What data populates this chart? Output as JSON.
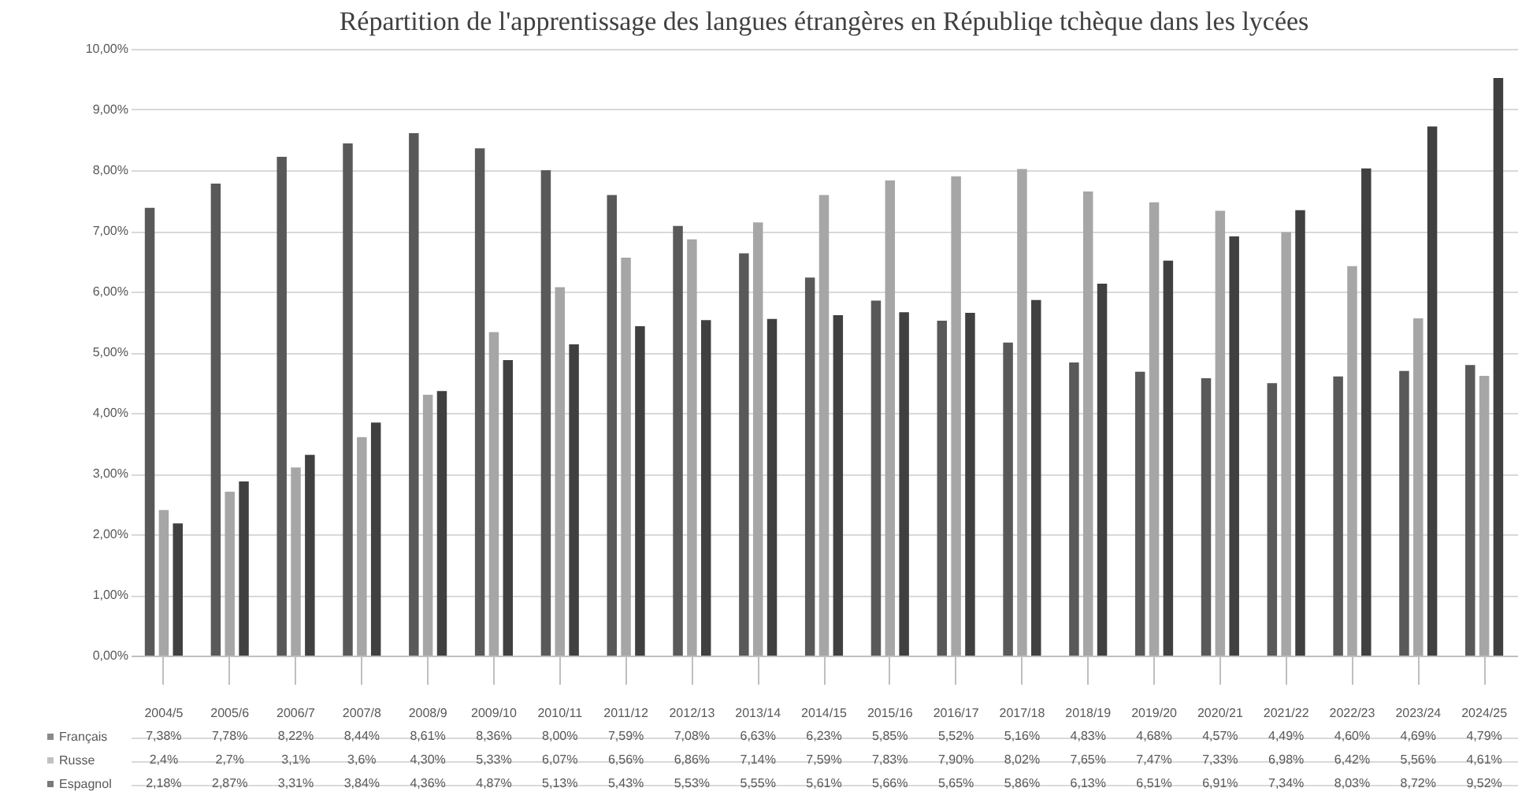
{
  "chart_data": {
    "type": "bar",
    "title": "Répartition de l'apprentissage des langues étrangères en Républiqe tchèque dans les lycées",
    "categories": [
      "2004/5",
      "2005/6",
      "2006/7",
      "2007/8",
      "2008/9",
      "2009/10",
      "2010/11",
      "2011/12",
      "2012/13",
      "2013/14",
      "2014/15",
      "2015/16",
      "2016/17",
      "2017/18",
      "2018/19",
      "2019/20",
      "2020/21",
      "2021/22",
      "2022/23",
      "2023/24",
      "2024/25"
    ],
    "series": [
      {
        "name": "Français",
        "color": "#595959",
        "values": [
          7.38,
          7.78,
          8.22,
          8.44,
          8.61,
          8.36,
          8.0,
          7.59,
          7.08,
          6.63,
          6.23,
          5.85,
          5.52,
          5.16,
          4.83,
          4.68,
          4.57,
          4.49,
          4.6,
          4.69,
          4.79
        ],
        "value_labels": [
          "7,38%",
          "7,78%",
          "8,22%",
          "8,44%",
          "8,61%",
          "8,36%",
          "8,00%",
          "7,59%",
          "7,08%",
          "6,63%",
          "6,23%",
          "5,85%",
          "5,52%",
          "5,16%",
          "4,83%",
          "4,68%",
          "4,57%",
          "4,49%",
          "4,60%",
          "4,69%",
          "4,79%"
        ]
      },
      {
        "name": "Russe",
        "color": "#a6a6a6",
        "values": [
          2.4,
          2.7,
          3.1,
          3.6,
          4.3,
          5.33,
          6.07,
          6.56,
          6.86,
          7.14,
          7.59,
          7.83,
          7.9,
          8.02,
          7.65,
          7.47,
          7.33,
          6.98,
          6.42,
          5.56,
          4.61
        ],
        "value_labels": [
          "2,4%",
          "2,7%",
          "3,1%",
          "3,6%",
          "4,30%",
          "5,33%",
          "6,07%",
          "6,56%",
          "6,86%",
          "7,14%",
          "7,59%",
          "7,83%",
          "7,90%",
          "8,02%",
          "7,65%",
          "7,47%",
          "7,33%",
          "6,98%",
          "6,42%",
          "5,56%",
          "4,61%"
        ]
      },
      {
        "name": "Espagnol",
        "color": "#404040",
        "values": [
          2.18,
          2.87,
          3.31,
          3.84,
          4.36,
          4.87,
          5.13,
          5.43,
          5.53,
          5.55,
          5.61,
          5.66,
          5.65,
          5.86,
          6.13,
          6.51,
          6.91,
          7.34,
          8.03,
          8.72,
          9.52
        ],
        "value_labels": [
          "2,18%",
          "2,87%",
          "3,31%",
          "3,84%",
          "4,36%",
          "4,87%",
          "5,13%",
          "5,43%",
          "5,53%",
          "5,55%",
          "5,61%",
          "5,66%",
          "5,65%",
          "5,86%",
          "6,13%",
          "6,51%",
          "6,91%",
          "7,34%",
          "8,03%",
          "8,72%",
          "9,52%"
        ]
      }
    ],
    "ylim": [
      0,
      10
    ],
    "yticks": [
      {
        "value": 0,
        "label": "0,00%"
      },
      {
        "value": 1,
        "label": "1,00%"
      },
      {
        "value": 2,
        "label": "2,00%"
      },
      {
        "value": 3,
        "label": "3,00%"
      },
      {
        "value": 4,
        "label": "4,00%"
      },
      {
        "value": 5,
        "label": "5,00%"
      },
      {
        "value": 6,
        "label": "6,00%"
      },
      {
        "value": 7,
        "label": "7,00%"
      },
      {
        "value": 8,
        "label": "8,00%"
      },
      {
        "value": 9,
        "label": "9,00%"
      },
      {
        "value": 10,
        "label": "10,00%"
      }
    ],
    "grid": "y",
    "legend": "bottom left"
  }
}
